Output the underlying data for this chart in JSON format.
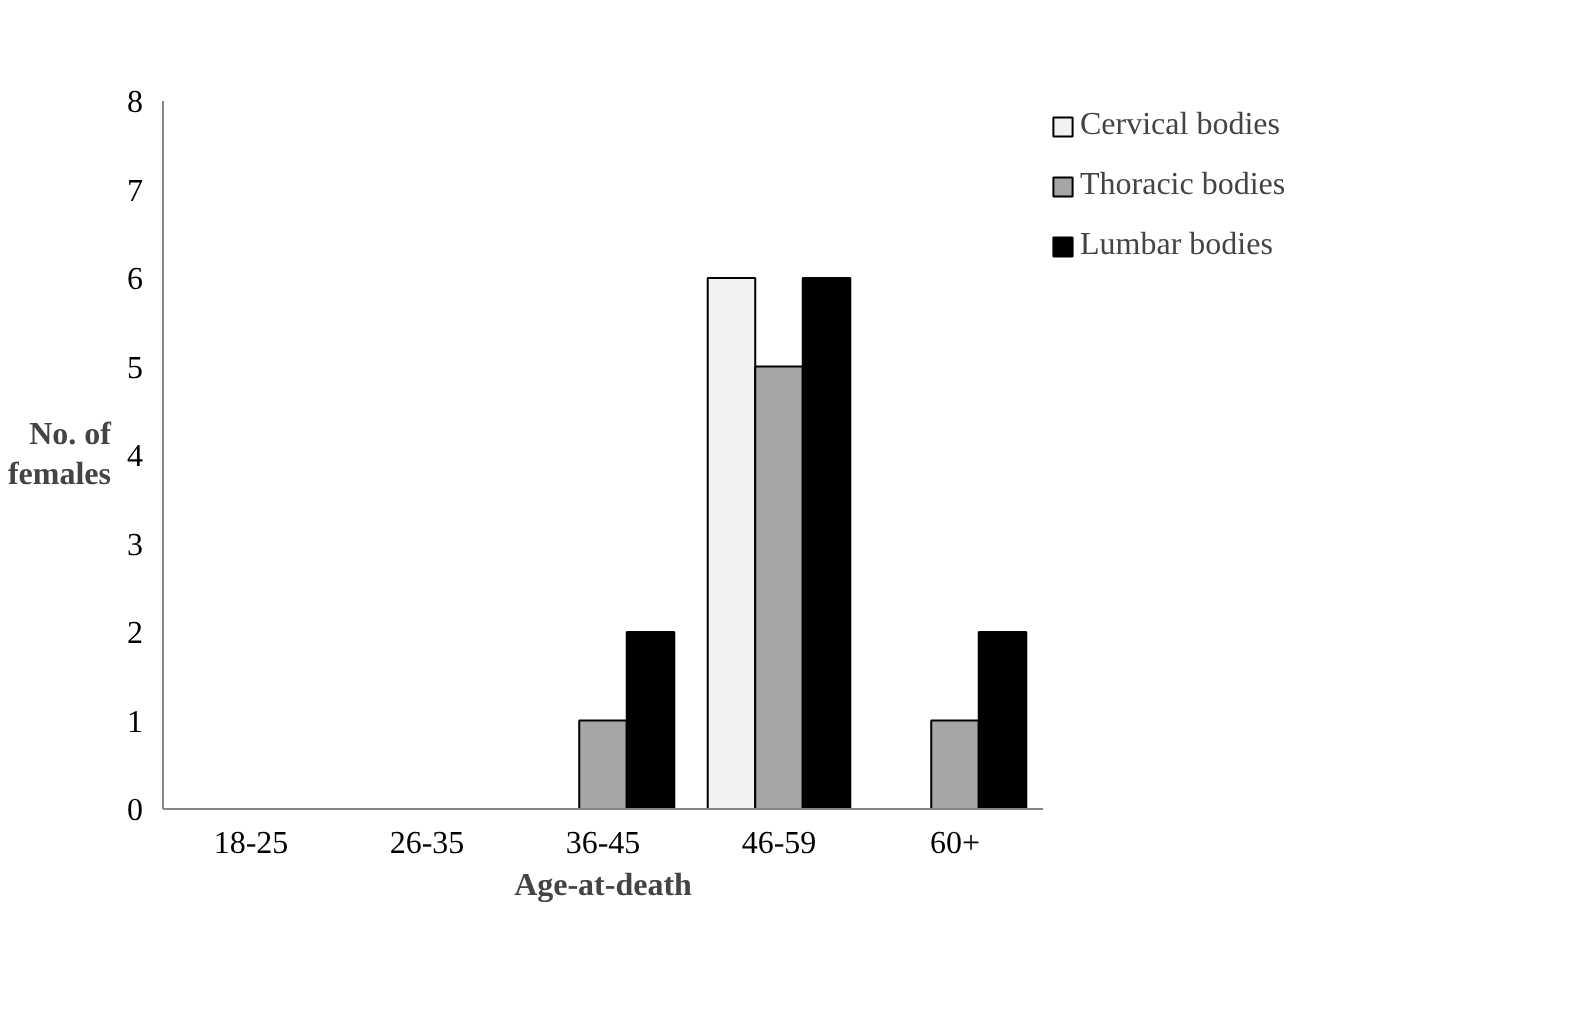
{
  "chart_data": {
    "type": "bar",
    "xlabel": "Age-at-death",
    "ylabel": "No. of females",
    "categories": [
      "18-25",
      "26-35",
      "36-45",
      "46-59",
      "60+"
    ],
    "series": [
      {
        "name": "Cervical bodies",
        "color": "#f2f2f2",
        "values": [
          0,
          0,
          0,
          6,
          0
        ]
      },
      {
        "name": "Thoracic bodies",
        "color": "#a6a6a6",
        "values": [
          0,
          0,
          1,
          5,
          1
        ]
      },
      {
        "name": "Lumbar bodies",
        "color": "#000000",
        "values": [
          0,
          0,
          2,
          6,
          2
        ]
      }
    ],
    "ylim": [
      0,
      8
    ],
    "yticks": [
      0,
      1,
      2,
      3,
      4,
      5,
      6,
      7,
      8
    ],
    "grid": false,
    "legend": "right"
  }
}
